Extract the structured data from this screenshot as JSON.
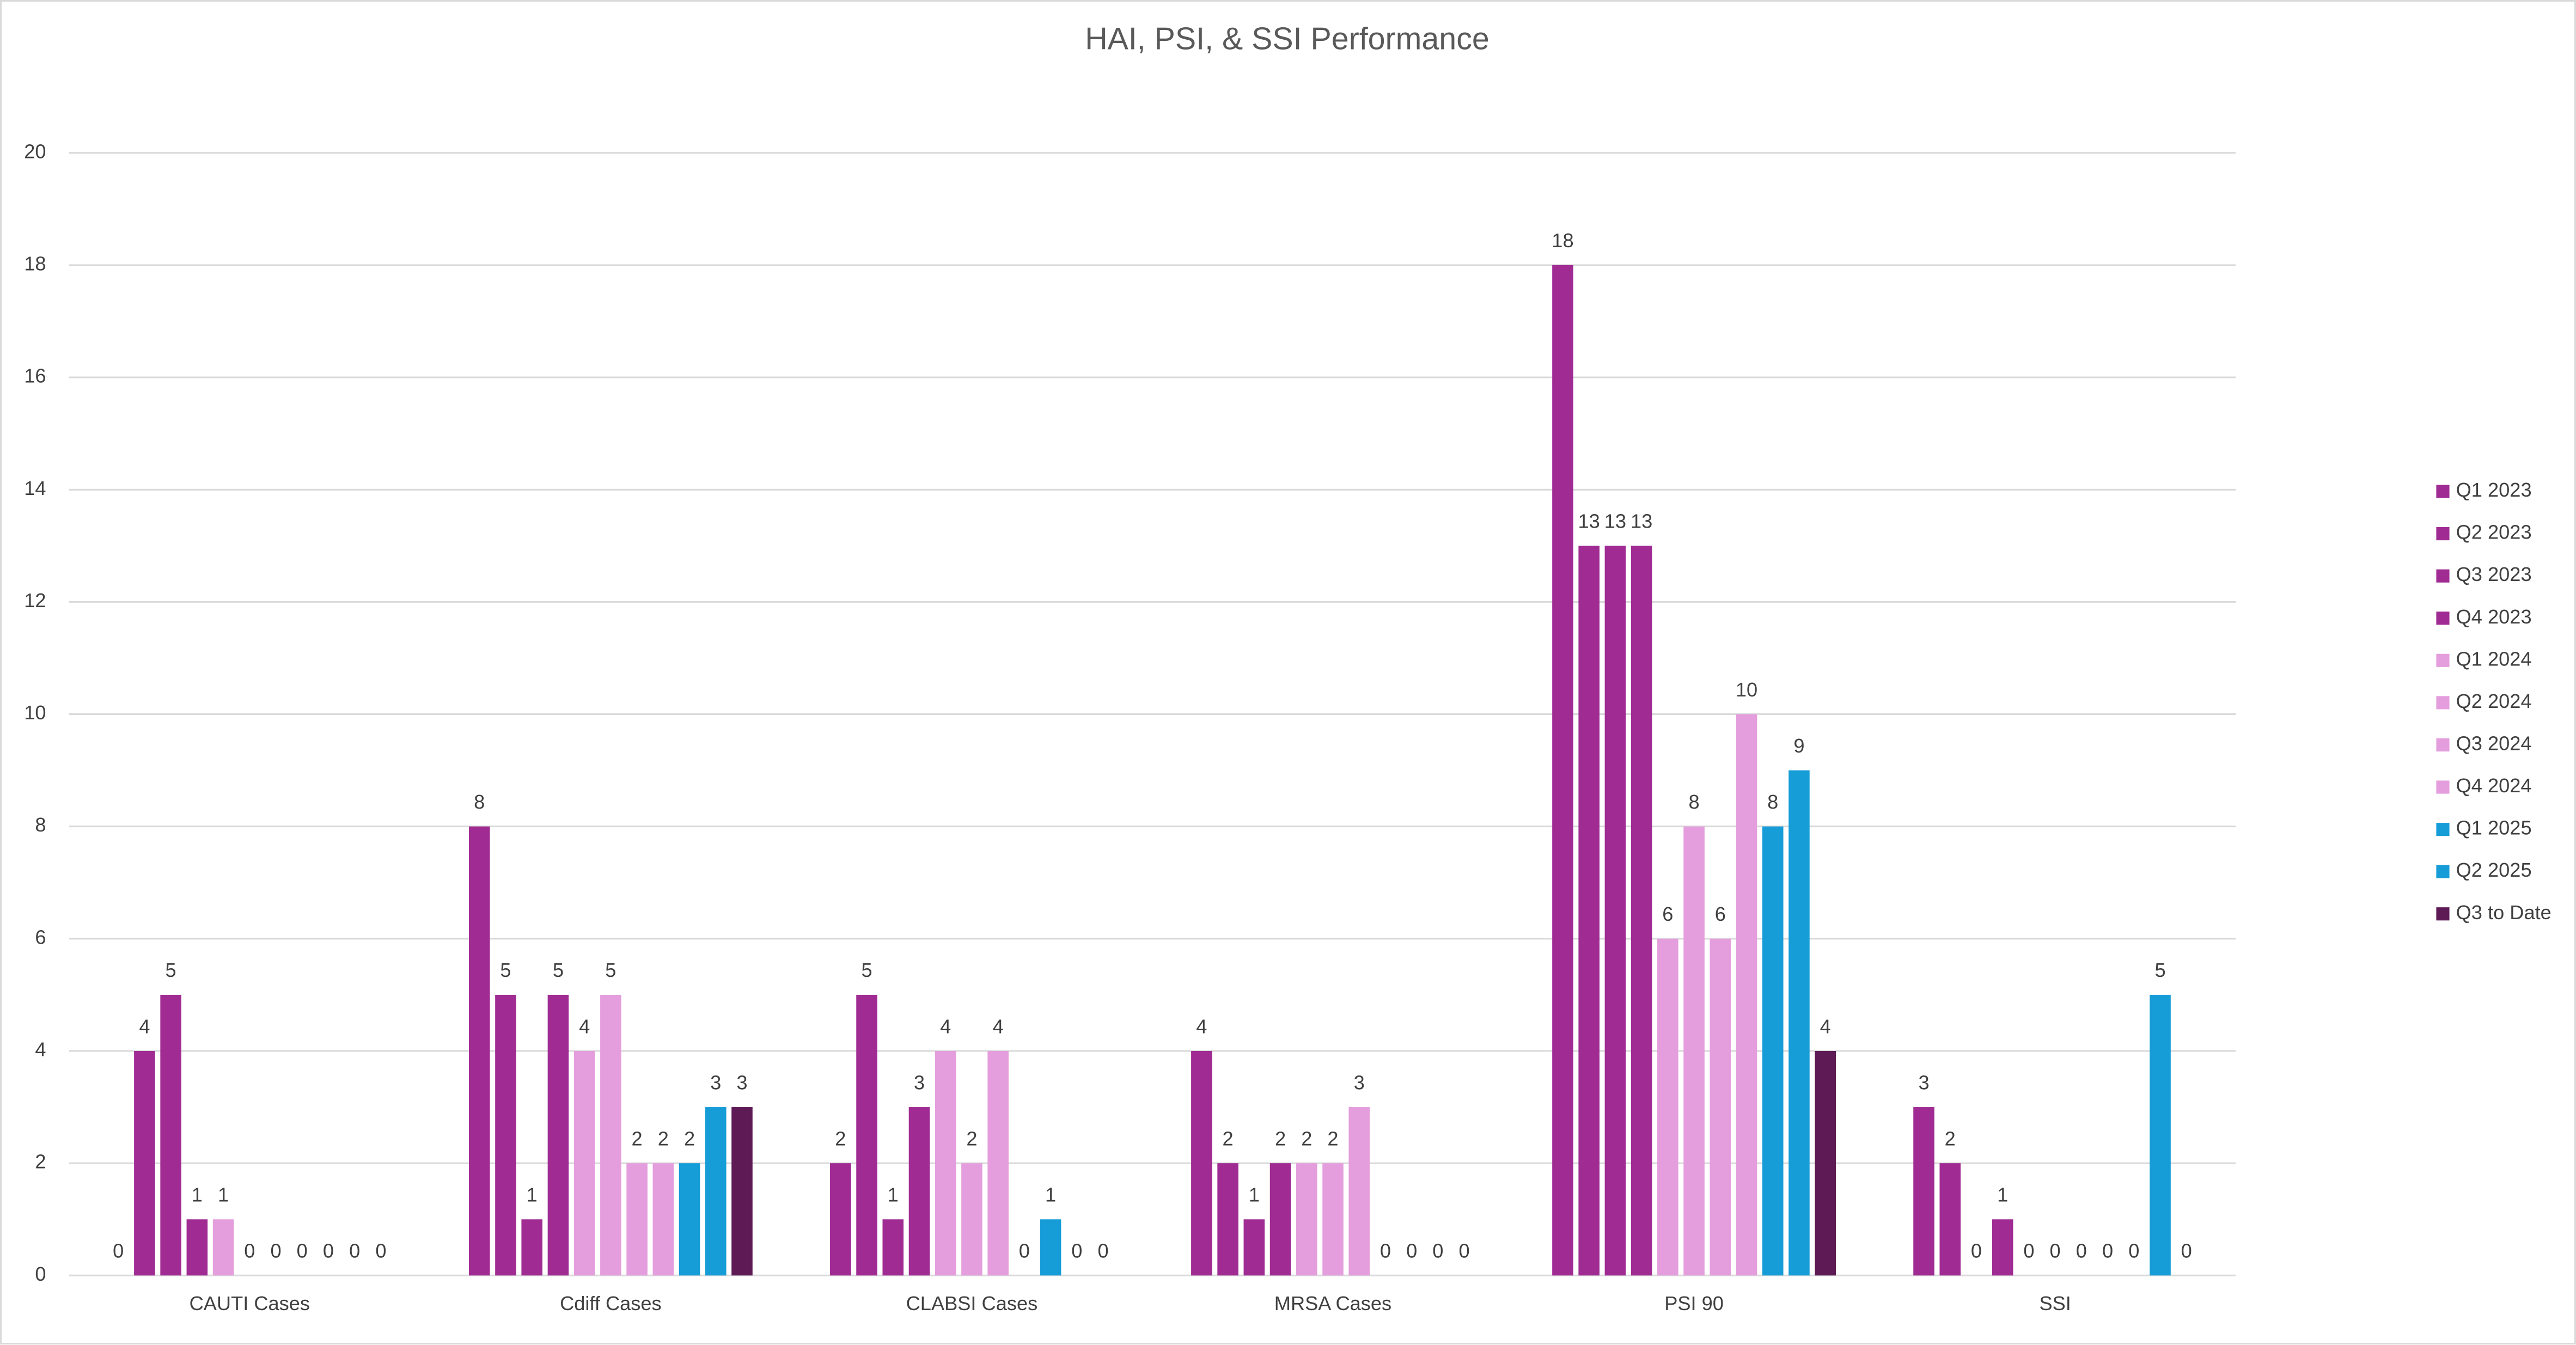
{
  "chart_data": {
    "type": "bar",
    "title": "HAI, PSI, & SSI Performance",
    "categories": [
      "CAUTI Cases",
      "Cdiff Cases",
      "CLABSI Cases",
      "MRSA Cases",
      "PSI 90",
      "SSI"
    ],
    "series": [
      {
        "name": "Q1 2023",
        "color": "#a02b93",
        "values": [
          0,
          8,
          2,
          4,
          18,
          3
        ]
      },
      {
        "name": "Q2 2023",
        "color": "#a02b93",
        "values": [
          4,
          5,
          5,
          2,
          13,
          2
        ]
      },
      {
        "name": "Q3 2023",
        "color": "#a02b93",
        "values": [
          5,
          1,
          1,
          1,
          13,
          0
        ]
      },
      {
        "name": "Q4 2023",
        "color": "#a02b93",
        "values": [
          1,
          5,
          3,
          2,
          13,
          1
        ]
      },
      {
        "name": "Q1 2024",
        "color": "#e59edd",
        "values": [
          1,
          4,
          4,
          2,
          6,
          0
        ]
      },
      {
        "name": "Q2 2024",
        "color": "#e59edd",
        "values": [
          0,
          5,
          2,
          2,
          8,
          0
        ]
      },
      {
        "name": "Q3 2024",
        "color": "#e59edd",
        "values": [
          0,
          2,
          4,
          3,
          6,
          0
        ]
      },
      {
        "name": "Q4 2024",
        "color": "#e59edd",
        "values": [
          0,
          2,
          0,
          0,
          10,
          0
        ]
      },
      {
        "name": "Q1 2025",
        "color": "#169dd7",
        "values": [
          0,
          2,
          1,
          0,
          8,
          0
        ]
      },
      {
        "name": "Q2 2025",
        "color": "#169dd7",
        "values": [
          0,
          3,
          0,
          0,
          9,
          5
        ]
      },
      {
        "name": "Q3 to Date",
        "color": "#5d1a55",
        "values": [
          0,
          3,
          0,
          0,
          4,
          0
        ]
      }
    ],
    "ylim": [
      0,
      20
    ],
    "yticks": [
      0,
      2,
      4,
      6,
      8,
      10,
      12,
      14,
      16,
      18,
      20
    ],
    "grid": true,
    "legend": "right"
  }
}
